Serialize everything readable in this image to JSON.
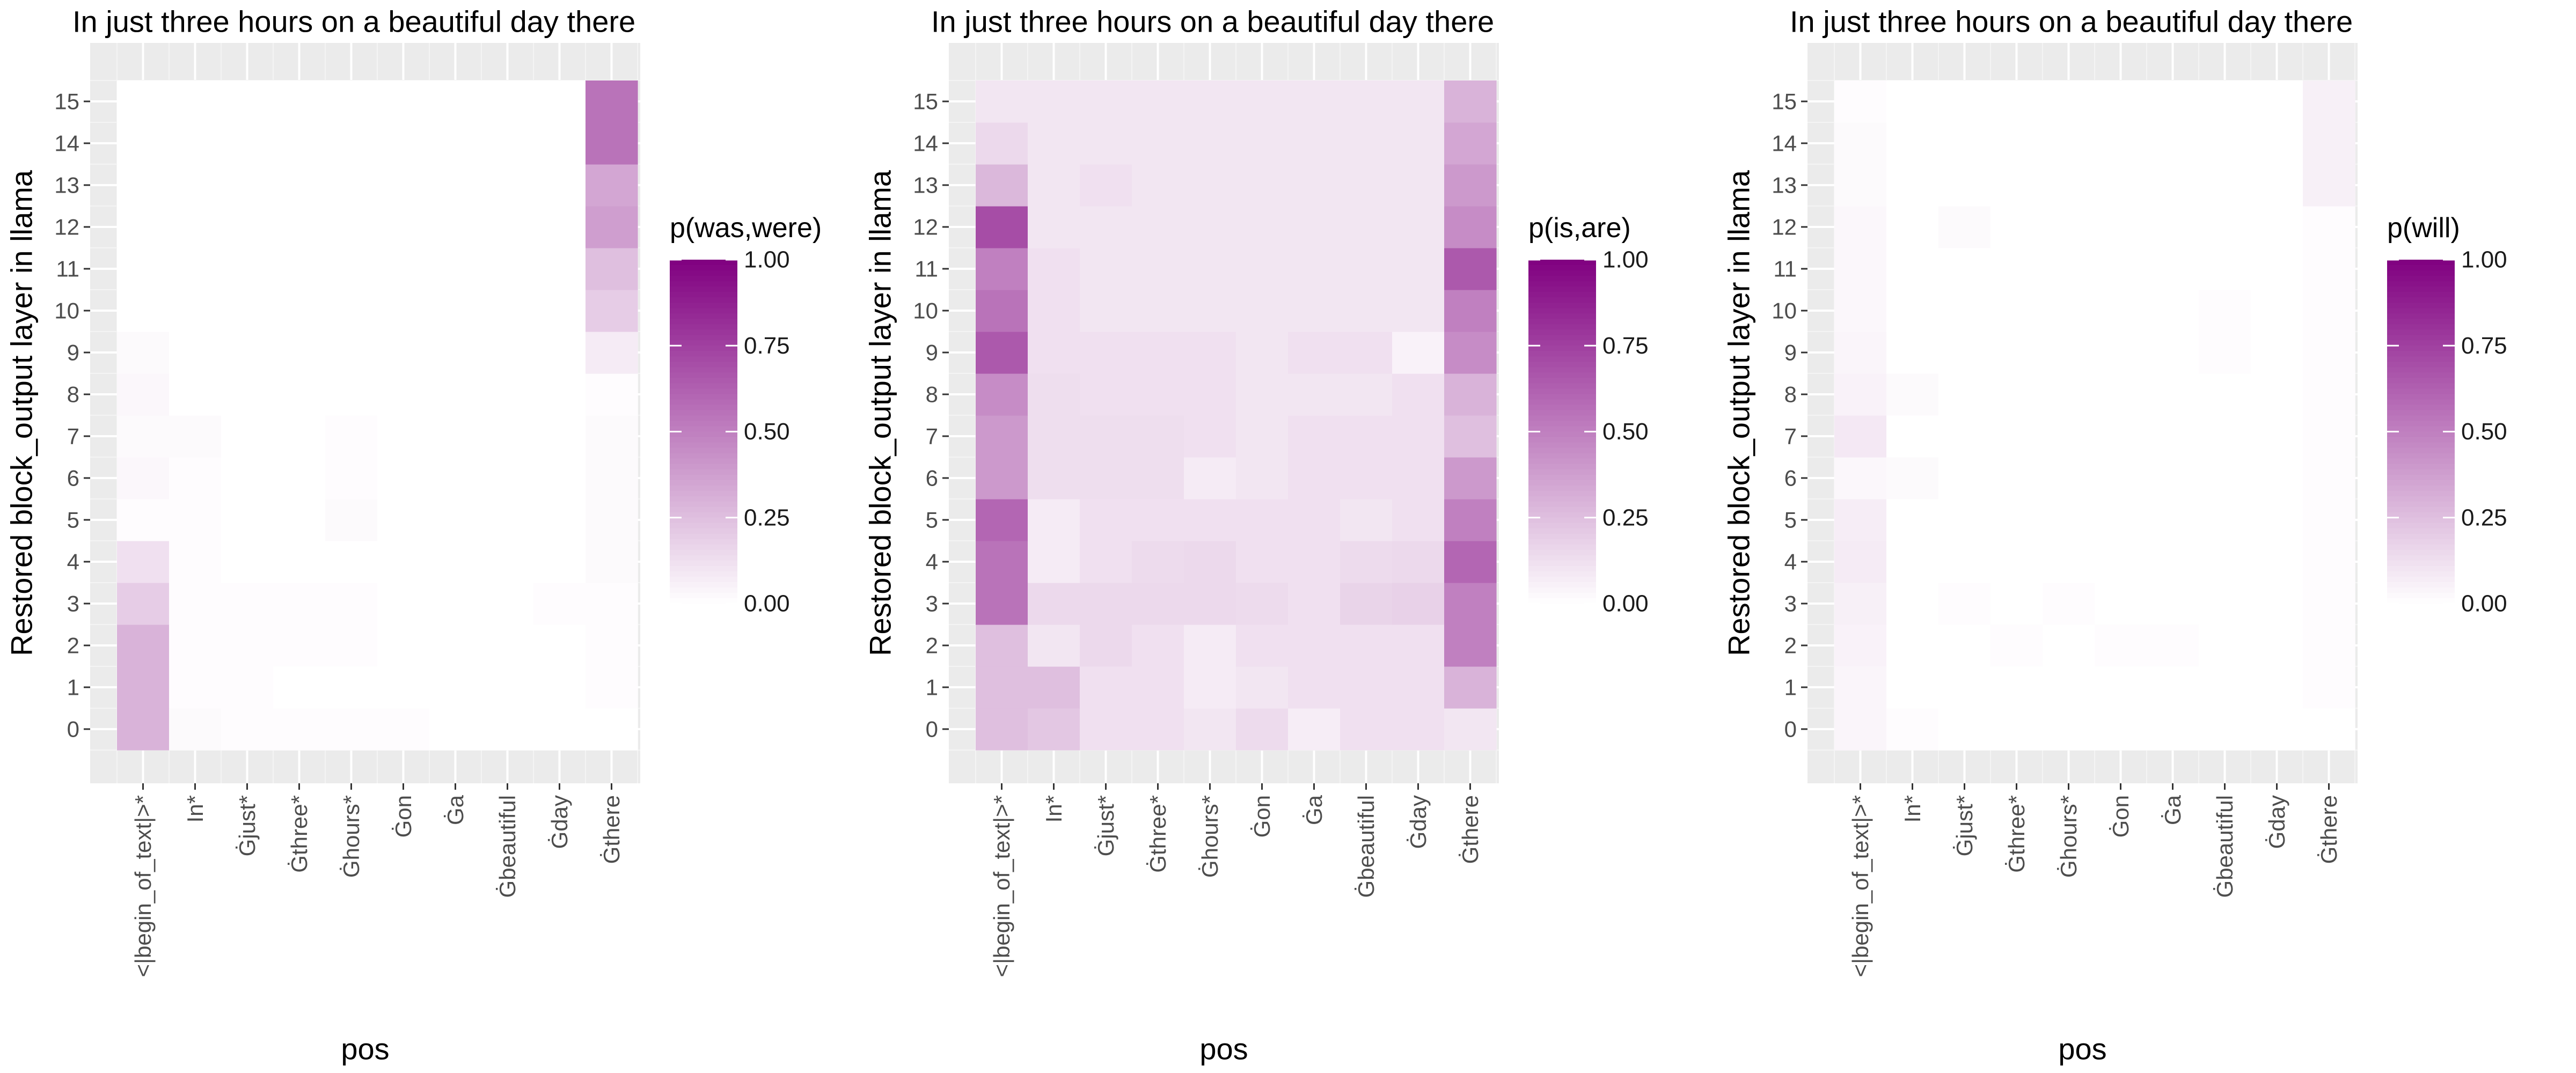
{
  "chart_data": [
    {
      "type": "heatmap",
      "title": "In just three hours on a beautiful day there",
      "xlabel": "pos",
      "ylabel": "Restored block_output layer in llama",
      "x_categories": [
        "<|begin_of_text|>*",
        "In*",
        "Ġjust*",
        "Ġthree*",
        "Ġhours*",
        "Ġon",
        "Ġa",
        "Ġbeautiful",
        "Ġday",
        "Ġthere"
      ],
      "y_categories": [
        "0",
        "1",
        "2",
        "3",
        "4",
        "5",
        "6",
        "7",
        "8",
        "9",
        "10",
        "11",
        "12",
        "13",
        "14",
        "15"
      ],
      "legend": {
        "title": "p(was,were)",
        "range": [
          0,
          1
        ],
        "ticks": [
          "0.00",
          "0.25",
          "0.50",
          "0.75",
          "1.00"
        ],
        "low_color": "#ffffff",
        "high_color": "#800080"
      },
      "grid": true,
      "values": [
        [
          0.3,
          0.02,
          0.01,
          0.01,
          0.01,
          0.01,
          0.0,
          0.0,
          0.0,
          0.0
        ],
        [
          0.3,
          0.01,
          0.01,
          0.0,
          0.0,
          0.0,
          0.0,
          0.0,
          0.0,
          0.01
        ],
        [
          0.3,
          0.01,
          0.01,
          0.01,
          0.01,
          0.0,
          0.0,
          0.0,
          0.0,
          0.01
        ],
        [
          0.2,
          0.01,
          0.01,
          0.01,
          0.01,
          0.0,
          0.0,
          0.0,
          0.01,
          0.01
        ],
        [
          0.12,
          0.01,
          0.0,
          0.0,
          0.0,
          0.0,
          0.0,
          0.0,
          0.0,
          0.02
        ],
        [
          0.01,
          0.01,
          0.0,
          0.0,
          0.02,
          0.0,
          0.0,
          0.0,
          0.0,
          0.02
        ],
        [
          0.03,
          0.01,
          0.0,
          0.0,
          0.01,
          0.0,
          0.0,
          0.0,
          0.0,
          0.02
        ],
        [
          0.02,
          0.02,
          0.0,
          0.0,
          0.01,
          0.0,
          0.0,
          0.0,
          0.0,
          0.02
        ],
        [
          0.03,
          0.0,
          0.0,
          0.0,
          0.0,
          0.0,
          0.0,
          0.0,
          0.0,
          0.01
        ],
        [
          0.02,
          0.0,
          0.0,
          0.0,
          0.0,
          0.0,
          0.0,
          0.0,
          0.0,
          0.08
        ],
        [
          0.0,
          0.0,
          0.0,
          0.0,
          0.0,
          0.0,
          0.0,
          0.0,
          0.0,
          0.2
        ],
        [
          0.0,
          0.0,
          0.0,
          0.0,
          0.0,
          0.0,
          0.0,
          0.0,
          0.0,
          0.25
        ],
        [
          0.0,
          0.0,
          0.0,
          0.0,
          0.0,
          0.0,
          0.0,
          0.0,
          0.0,
          0.38
        ],
        [
          0.0,
          0.0,
          0.0,
          0.0,
          0.0,
          0.0,
          0.0,
          0.0,
          0.0,
          0.35
        ],
        [
          0.0,
          0.0,
          0.0,
          0.0,
          0.0,
          0.0,
          0.0,
          0.0,
          0.0,
          0.55
        ],
        [
          0.0,
          0.0,
          0.0,
          0.0,
          0.0,
          0.0,
          0.0,
          0.0,
          0.0,
          0.55
        ]
      ]
    },
    {
      "type": "heatmap",
      "title": "In just three hours on a beautiful day there",
      "xlabel": "pos",
      "ylabel": "Restored block_output layer in llama",
      "x_categories": [
        "<|begin_of_text|>*",
        "In*",
        "Ġjust*",
        "Ġthree*",
        "Ġhours*",
        "Ġon",
        "Ġa",
        "Ġbeautiful",
        "Ġday",
        "Ġthere"
      ],
      "y_categories": [
        "0",
        "1",
        "2",
        "3",
        "4",
        "5",
        "6",
        "7",
        "8",
        "9",
        "10",
        "11",
        "12",
        "13",
        "14",
        "15"
      ],
      "legend": {
        "title": "p(is,are)",
        "range": [
          0,
          1
        ],
        "ticks": [
          "0.00",
          "0.25",
          "0.50",
          "0.75",
          "1.00"
        ],
        "low_color": "#ffffff",
        "high_color": "#800080"
      },
      "grid": true,
      "values": [
        [
          0.25,
          0.22,
          0.12,
          0.12,
          0.1,
          0.14,
          0.07,
          0.12,
          0.12,
          0.1
        ],
        [
          0.25,
          0.25,
          0.12,
          0.12,
          0.08,
          0.1,
          0.12,
          0.12,
          0.12,
          0.3
        ],
        [
          0.25,
          0.1,
          0.15,
          0.12,
          0.08,
          0.12,
          0.12,
          0.12,
          0.12,
          0.5
        ],
        [
          0.55,
          0.15,
          0.15,
          0.15,
          0.15,
          0.14,
          0.12,
          0.17,
          0.18,
          0.5
        ],
        [
          0.55,
          0.08,
          0.12,
          0.14,
          0.15,
          0.12,
          0.12,
          0.14,
          0.15,
          0.6
        ],
        [
          0.6,
          0.08,
          0.12,
          0.12,
          0.12,
          0.12,
          0.12,
          0.1,
          0.12,
          0.5
        ],
        [
          0.4,
          0.13,
          0.13,
          0.13,
          0.08,
          0.1,
          0.12,
          0.12,
          0.12,
          0.4
        ],
        [
          0.4,
          0.13,
          0.13,
          0.13,
          0.12,
          0.1,
          0.12,
          0.12,
          0.12,
          0.25
        ],
        [
          0.45,
          0.13,
          0.12,
          0.12,
          0.12,
          0.1,
          0.1,
          0.1,
          0.12,
          0.3
        ],
        [
          0.65,
          0.12,
          0.12,
          0.12,
          0.12,
          0.1,
          0.12,
          0.12,
          0.05,
          0.45
        ],
        [
          0.55,
          0.12,
          0.1,
          0.1,
          0.1,
          0.1,
          0.1,
          0.1,
          0.1,
          0.5
        ],
        [
          0.5,
          0.12,
          0.1,
          0.1,
          0.1,
          0.1,
          0.1,
          0.1,
          0.1,
          0.65
        ],
        [
          0.7,
          0.1,
          0.1,
          0.1,
          0.1,
          0.1,
          0.1,
          0.1,
          0.1,
          0.45
        ],
        [
          0.28,
          0.1,
          0.12,
          0.1,
          0.1,
          0.1,
          0.1,
          0.1,
          0.1,
          0.4
        ],
        [
          0.15,
          0.1,
          0.1,
          0.1,
          0.1,
          0.1,
          0.1,
          0.1,
          0.1,
          0.35
        ],
        [
          0.1,
          0.1,
          0.1,
          0.1,
          0.1,
          0.1,
          0.1,
          0.1,
          0.1,
          0.3
        ]
      ]
    },
    {
      "type": "heatmap",
      "title": "In just three hours on a beautiful day there",
      "xlabel": "pos",
      "ylabel": "Restored block_output layer in llama",
      "x_categories": [
        "<|begin_of_text|>*",
        "In*",
        "Ġjust*",
        "Ġthree*",
        "Ġhours*",
        "Ġon",
        "Ġa",
        "Ġbeautiful",
        "Ġday",
        "Ġthere"
      ],
      "y_categories": [
        "0",
        "1",
        "2",
        "3",
        "4",
        "5",
        "6",
        "7",
        "8",
        "9",
        "10",
        "11",
        "12",
        "13",
        "14",
        "15"
      ],
      "legend": {
        "title": "p(will)",
        "range": [
          0,
          1
        ],
        "ticks": [
          "0.00",
          "0.25",
          "0.50",
          "0.75",
          "1.00"
        ],
        "low_color": "#ffffff",
        "high_color": "#800080"
      },
      "grid": true,
      "values": [
        [
          0.04,
          0.01,
          0.0,
          0.0,
          0.0,
          0.0,
          0.0,
          0.0,
          0.0,
          0.0
        ],
        [
          0.04,
          0.0,
          0.0,
          0.0,
          0.0,
          0.0,
          0.0,
          0.0,
          0.0,
          0.01
        ],
        [
          0.05,
          0.0,
          0.0,
          0.01,
          0.0,
          0.01,
          0.01,
          0.0,
          0.0,
          0.01
        ],
        [
          0.06,
          0.0,
          0.01,
          0.0,
          0.01,
          0.0,
          0.0,
          0.0,
          0.0,
          0.01
        ],
        [
          0.08,
          0.0,
          0.0,
          0.0,
          0.0,
          0.0,
          0.0,
          0.0,
          0.0,
          0.01
        ],
        [
          0.07,
          0.0,
          0.0,
          0.0,
          0.0,
          0.0,
          0.0,
          0.0,
          0.0,
          0.01
        ],
        [
          0.03,
          0.02,
          0.0,
          0.0,
          0.0,
          0.0,
          0.0,
          0.0,
          0.0,
          0.01
        ],
        [
          0.09,
          0.0,
          0.0,
          0.0,
          0.0,
          0.0,
          0.0,
          0.0,
          0.0,
          0.01
        ],
        [
          0.05,
          0.02,
          0.0,
          0.0,
          0.0,
          0.0,
          0.0,
          0.0,
          0.0,
          0.01
        ],
        [
          0.04,
          0.0,
          0.0,
          0.0,
          0.0,
          0.0,
          0.0,
          0.01,
          0.0,
          0.01
        ],
        [
          0.03,
          0.0,
          0.0,
          0.0,
          0.0,
          0.0,
          0.0,
          0.01,
          0.0,
          0.01
        ],
        [
          0.03,
          0.0,
          0.0,
          0.0,
          0.0,
          0.0,
          0.0,
          0.0,
          0.0,
          0.01
        ],
        [
          0.03,
          0.0,
          0.02,
          0.0,
          0.0,
          0.0,
          0.0,
          0.0,
          0.0,
          0.01
        ],
        [
          0.02,
          0.0,
          0.0,
          0.0,
          0.0,
          0.0,
          0.0,
          0.0,
          0.0,
          0.06
        ],
        [
          0.02,
          0.0,
          0.0,
          0.0,
          0.0,
          0.0,
          0.0,
          0.0,
          0.0,
          0.06
        ],
        [
          0.01,
          0.0,
          0.0,
          0.0,
          0.0,
          0.0,
          0.0,
          0.0,
          0.0,
          0.06
        ]
      ]
    }
  ]
}
